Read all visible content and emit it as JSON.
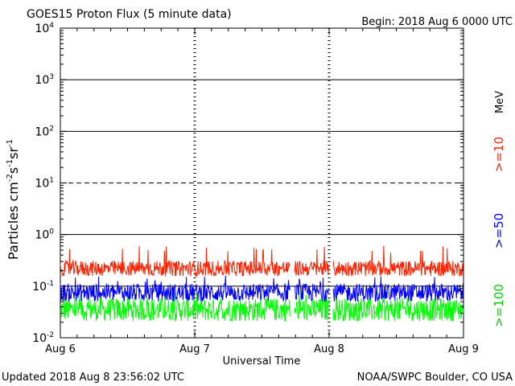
{
  "chart_data": {
    "type": "line",
    "title": "GOES15 Proton Flux (5 minute data)",
    "begin_label": "Begin: 2018 Aug 6 0000 UTC",
    "xlabel": "Universal Time",
    "ylabel": {
      "base": "Particles cm",
      "exp1": "-2",
      "mid1": "s",
      "exp2": "-1",
      "mid2": "sr",
      "exp3": "-1"
    },
    "y_scale": "log",
    "ylim": [
      0.01,
      10000
    ],
    "y_ticks": [
      {
        "base": "10",
        "exp": "-2"
      },
      {
        "base": "10",
        "exp": "-1"
      },
      {
        "base": "10",
        "exp": "0"
      },
      {
        "base": "10",
        "exp": "1"
      },
      {
        "base": "10",
        "exp": "2"
      },
      {
        "base": "10",
        "exp": "3"
      },
      {
        "base": "10",
        "exp": "4"
      }
    ],
    "x_ticks": [
      "Aug 6",
      "Aug 7",
      "Aug 8",
      "Aug 9"
    ],
    "xlim_days": [
      0,
      3
    ],
    "reference_lines": [
      {
        "value": 1,
        "style": "solid"
      },
      {
        "value": 10,
        "style": "dashed"
      },
      {
        "value": 100,
        "style": "solid"
      },
      {
        "value": 1000,
        "style": "solid"
      },
      {
        "value": 0.1,
        "style": "solid"
      }
    ],
    "energy_unit": "MeV",
    "series": [
      {
        "name": ">=10",
        "color": "#ff2200",
        "base": 0.22,
        "spread": 0.3,
        "spike": 0.55
      },
      {
        "name": ">=50",
        "color": "#0000ff",
        "base": 0.075,
        "spread": 0.35,
        "spike": 0.15
      },
      {
        "name": ">=100",
        "color": "#00ff00",
        "base": 0.035,
        "spread": 0.45,
        "spike": 0.07
      }
    ],
    "data_gaps_days": [
      [
        1.71,
        1.74
      ],
      [
        2.0,
        2.03
      ]
    ]
  },
  "footer": {
    "updated": "Updated 2018 Aug  8 23:56:02 UTC",
    "source": "NOAA/SWPC Boulder, CO USA"
  }
}
